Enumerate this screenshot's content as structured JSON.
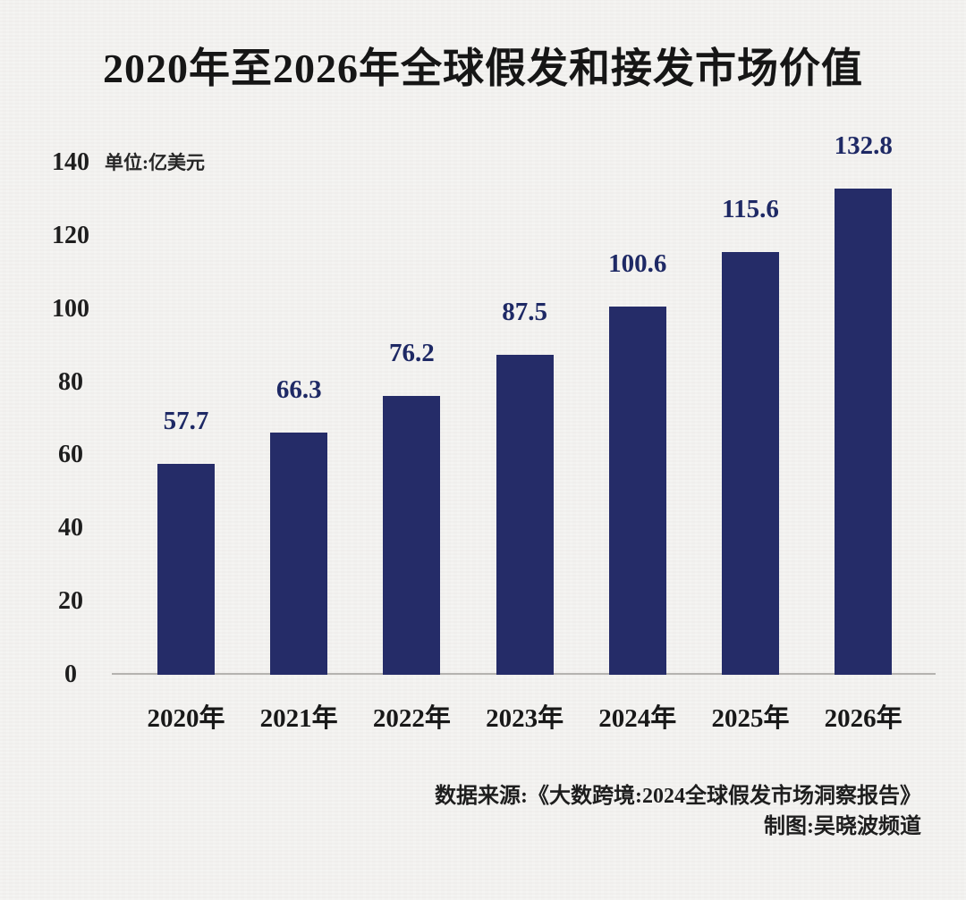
{
  "title": "2020年至2026年全球假发和接发市场价值",
  "chart_data": {
    "type": "bar",
    "categories": [
      "2020年",
      "2021年",
      "2022年",
      "2023年",
      "2024年",
      "2025年",
      "2026年"
    ],
    "values": [
      57.7,
      66.3,
      76.2,
      87.5,
      100.6,
      115.6,
      132.8
    ],
    "title": "2020年至2026年全球假发和接发市场价值",
    "unit_label": "单位:亿美元",
    "xlabel": "",
    "ylabel": "",
    "ylim": [
      0,
      140
    ],
    "yticks": [
      0,
      20,
      40,
      60,
      80,
      100,
      120,
      140
    ],
    "grid": false,
    "legend": "none",
    "value_labels_shown": true
  },
  "footer": {
    "source": "数据来源:《大数跨境:2024全球假发市场洞察报告》",
    "credit": "制图:吴晓波频道"
  },
  "colors": {
    "background": "#f4f3f1",
    "bar": "#252c68",
    "value_label": "#1e2965",
    "text": "#1c1c1c",
    "axis_line": "#b5b3b0"
  }
}
